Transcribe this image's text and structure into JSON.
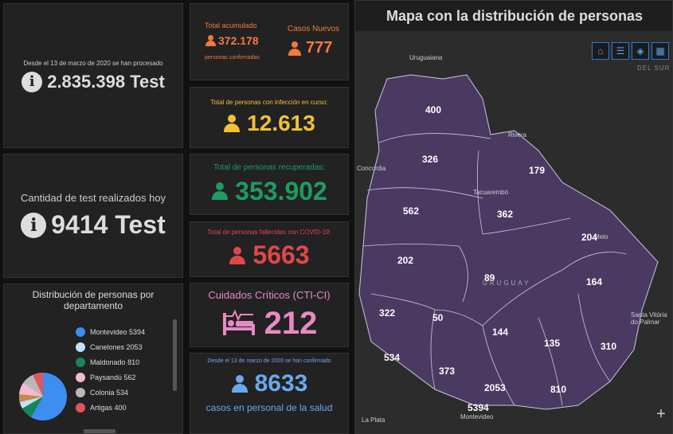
{
  "tests": {
    "processed_caption": "Desde el 13 de marzo de 2020 se han procesado",
    "processed_value": "2.835.398 Test",
    "today_caption": "Cantidad de test realizados hoy",
    "today_value": "9414 Test"
  },
  "totals": {
    "accum_label": "Total acumulado",
    "accum_value": "372.178",
    "accum_sub": "personas confirmadas",
    "new_label": "Casos Nuevos",
    "new_value": "777",
    "active_label": "Total de personas con infección en curso:",
    "active_value": "12.613",
    "recovered_label": "Total de personas recuperadas:",
    "recovered_value": "353.902",
    "deaths_label": "Total de personas fallecidas con COVID-19:",
    "deaths_value": "5663",
    "cti_label": "Cuidados Críticos (CTI-CI)",
    "cti_value": "212",
    "health_caption": "Desde el 13 de marzo de 2020 se han confirmado",
    "health_value": "8633",
    "health_sub": "casos en personal de la salud"
  },
  "colors": {
    "orange": "#f07b3f",
    "yellow": "#f1c232",
    "green": "#1e9b62",
    "red": "#e0474c",
    "pink": "#e78ac3",
    "blue": "#6aa9ee",
    "map_fill": "#4a3a62"
  },
  "distribution": {
    "title": "Distribución de personas por departamento",
    "items": [
      {
        "name": "Montevideo",
        "value": "5394",
        "color": "#3d8ef0"
      },
      {
        "name": "Canelones",
        "value": "2053",
        "color": "#bfe0f5"
      },
      {
        "name": "Maldonado",
        "value": "810",
        "color": "#17855a"
      },
      {
        "name": "Paysandú",
        "value": "562",
        "color": "#f5b8d0"
      },
      {
        "name": "Colonia",
        "value": "534",
        "color": "#b8b8b8"
      },
      {
        "name": "Artigas",
        "value": "400",
        "color": "#e05560"
      }
    ]
  },
  "map": {
    "title": "Mapa con la distribución de personas",
    "country": "URUGUAY",
    "controls": [
      "home-icon",
      "list-icon",
      "layers-icon",
      "qr-icon"
    ],
    "labels": [
      {
        "id": "artigas",
        "value": "400"
      },
      {
        "id": "salto",
        "value": "326"
      },
      {
        "id": "rivera",
        "value": "179"
      },
      {
        "id": "paysandu",
        "value": "562"
      },
      {
        "id": "tacuarembo",
        "value": "362"
      },
      {
        "id": "cerro-largo",
        "value": "204"
      },
      {
        "id": "rio-negro",
        "value": "202"
      },
      {
        "id": "durazno",
        "value": "89"
      },
      {
        "id": "treinta-y-tres",
        "value": "164"
      },
      {
        "id": "soriano",
        "value": "322"
      },
      {
        "id": "flores",
        "value": "50"
      },
      {
        "id": "florida",
        "value": "144"
      },
      {
        "id": "lavalleja",
        "value": "135"
      },
      {
        "id": "rocha",
        "value": "310"
      },
      {
        "id": "colonia",
        "value": "534"
      },
      {
        "id": "san-jose",
        "value": "373"
      },
      {
        "id": "canelones",
        "value": "2053"
      },
      {
        "id": "maldonado",
        "value": "810"
      },
      {
        "id": "montevideo",
        "value": "5394"
      }
    ],
    "cities": {
      "uruguaiana": "Uruguaiana",
      "concordia": "Concordia",
      "tacuarembo": "Tacuarembó",
      "rivera": "Rivera",
      "melo": "Melo",
      "santa_vitoria": "Santa Vitória do Palmar",
      "la_plata": "La Plata",
      "montevideo": "Montevideo",
      "del_sur": "DEL SUR"
    }
  }
}
